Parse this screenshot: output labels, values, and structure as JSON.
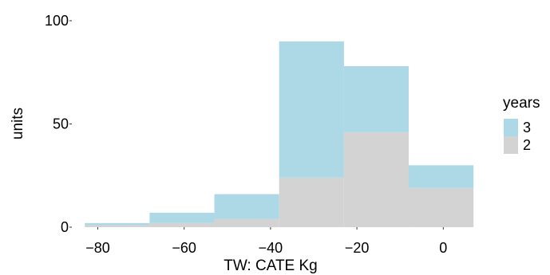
{
  "chart_data": {
    "type": "bar",
    "stacked": true,
    "histogram": true,
    "bins": [
      {
        "x0": -83,
        "x1": -68
      },
      {
        "x0": -68,
        "x1": -53
      },
      {
        "x0": -53,
        "x1": -38
      },
      {
        "x0": -38,
        "x1": -23
      },
      {
        "x0": -23,
        "x1": -8
      },
      {
        "x0": -8,
        "x1": 7
      }
    ],
    "series": [
      {
        "name": "2",
        "color": "#d3d3d3",
        "values": [
          1,
          2,
          4,
          24,
          46,
          19
        ]
      },
      {
        "name": "3",
        "color": "#add8e6",
        "values": [
          1,
          5,
          12,
          66,
          32,
          11
        ]
      }
    ],
    "xlabel": "TW: CATE Kg",
    "ylabel": "units",
    "xlim": [
      -86,
      9
    ],
    "ylim": [
      0,
      100
    ],
    "x_ticks": [
      {
        "value": -80,
        "label": "−80"
      },
      {
        "value": -60,
        "label": "−60"
      },
      {
        "value": -40,
        "label": "−40"
      },
      {
        "value": -20,
        "label": "−20"
      },
      {
        "value": 0,
        "label": "0"
      }
    ],
    "y_ticks": [
      {
        "value": 0,
        "label": "0"
      },
      {
        "value": 50,
        "label": "50"
      },
      {
        "value": 100,
        "label": "100"
      }
    ],
    "grid": false,
    "legend": {
      "title": "years",
      "position": "right",
      "entries": [
        {
          "label": "3",
          "color": "#add8e6"
        },
        {
          "label": "2",
          "color": "#d3d3d3"
        }
      ]
    }
  }
}
